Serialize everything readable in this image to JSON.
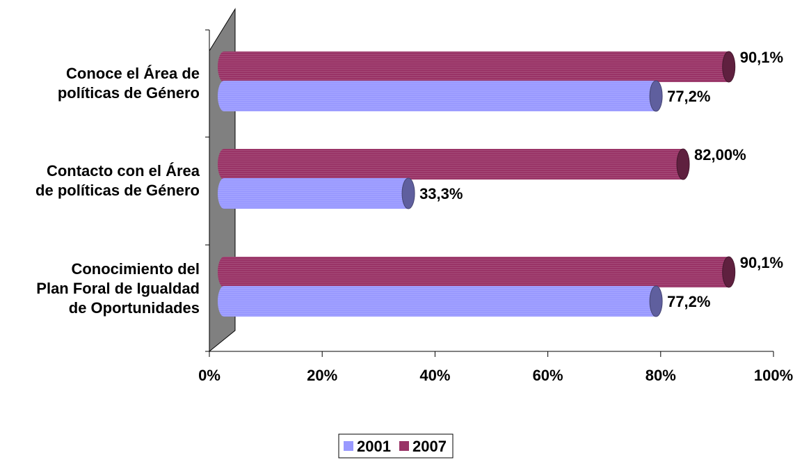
{
  "chart_data": {
    "type": "bar",
    "orientation": "horizontal",
    "style": "3d-cylinder",
    "categories": [
      "Conoce el Área de políticas de Género",
      "Contacto con el Área de políticas de Género",
      "Conocimiento del Plan Foral de Igualdad de Oportunidades"
    ],
    "category_lines": [
      [
        "Conoce el Área de",
        "políticas de Género"
      ],
      [
        "Contacto con el Área",
        "de políticas de Género"
      ],
      [
        "Conocimiento del",
        "Plan Foral de Igualdad",
        "de Oportunidades"
      ]
    ],
    "series": [
      {
        "name": "2001",
        "color": "#9999ff",
        "values": [
          77.2,
          33.3,
          77.2
        ],
        "labels": [
          "77,2%",
          "33,3%",
          "77,2%"
        ]
      },
      {
        "name": "2007",
        "color": "#993366",
        "values": [
          90.1,
          82.0,
          90.1
        ],
        "labels": [
          "90,1%",
          "82,00%",
          "90,1%"
        ]
      }
    ],
    "xlim": [
      0,
      100
    ],
    "x_ticks": [
      "0%",
      "20%",
      "40%",
      "60%",
      "80%",
      "100%"
    ],
    "legend": {
      "position": "bottom",
      "entries": [
        "2001",
        "2007"
      ]
    },
    "grid": false
  }
}
